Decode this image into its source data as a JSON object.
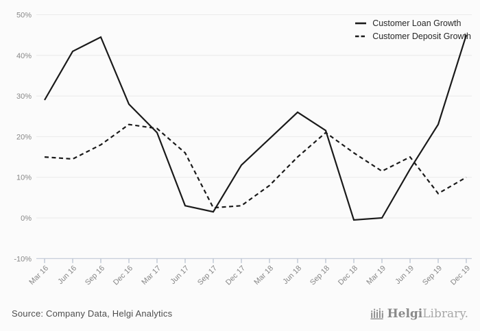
{
  "chart_data": {
    "type": "line",
    "x": [
      "Mar 16",
      "Jun 16",
      "Sep 16",
      "Dec 16",
      "Mar 17",
      "Jun 17",
      "Sep 17",
      "Dec 17",
      "Mar 18",
      "Jun 18",
      "Sep 18",
      "Dec 18",
      "Mar 19",
      "Jun 19",
      "Sep 19",
      "Dec 19"
    ],
    "series": [
      {
        "name": "Customer Loan Growth",
        "style": "solid",
        "values": [
          29,
          41,
          44.5,
          28,
          21,
          3,
          1.5,
          13,
          19.5,
          26,
          21.5,
          -0.5,
          0,
          12,
          23,
          45
        ]
      },
      {
        "name": "Customer Deposit Growth",
        "style": "dashed",
        "values": [
          15,
          14.5,
          18,
          23,
          22,
          16,
          2.5,
          3,
          8,
          15,
          21,
          16,
          11.5,
          15,
          6,
          10
        ]
      }
    ],
    "title": "",
    "xlabel": "",
    "ylabel": "",
    "ylim": [
      -10,
      50
    ],
    "ytick_step": 10,
    "ytick_labels": [
      "50%",
      "40%",
      "30%",
      "20%",
      "10%",
      "0%",
      "-10%"
    ],
    "grid": "horizontal",
    "legend_position": "top-right",
    "line_color": "#1a1a1a",
    "grid_color": "#eaeaea",
    "axis_color": "#c0c8d6",
    "tick_color": "#b4bdcd",
    "axis_label_color": "#878787"
  },
  "footer": {
    "source": "Source: Company Data, Helgi Analytics",
    "logo_bold": "Helgi",
    "logo_light": "Library."
  }
}
